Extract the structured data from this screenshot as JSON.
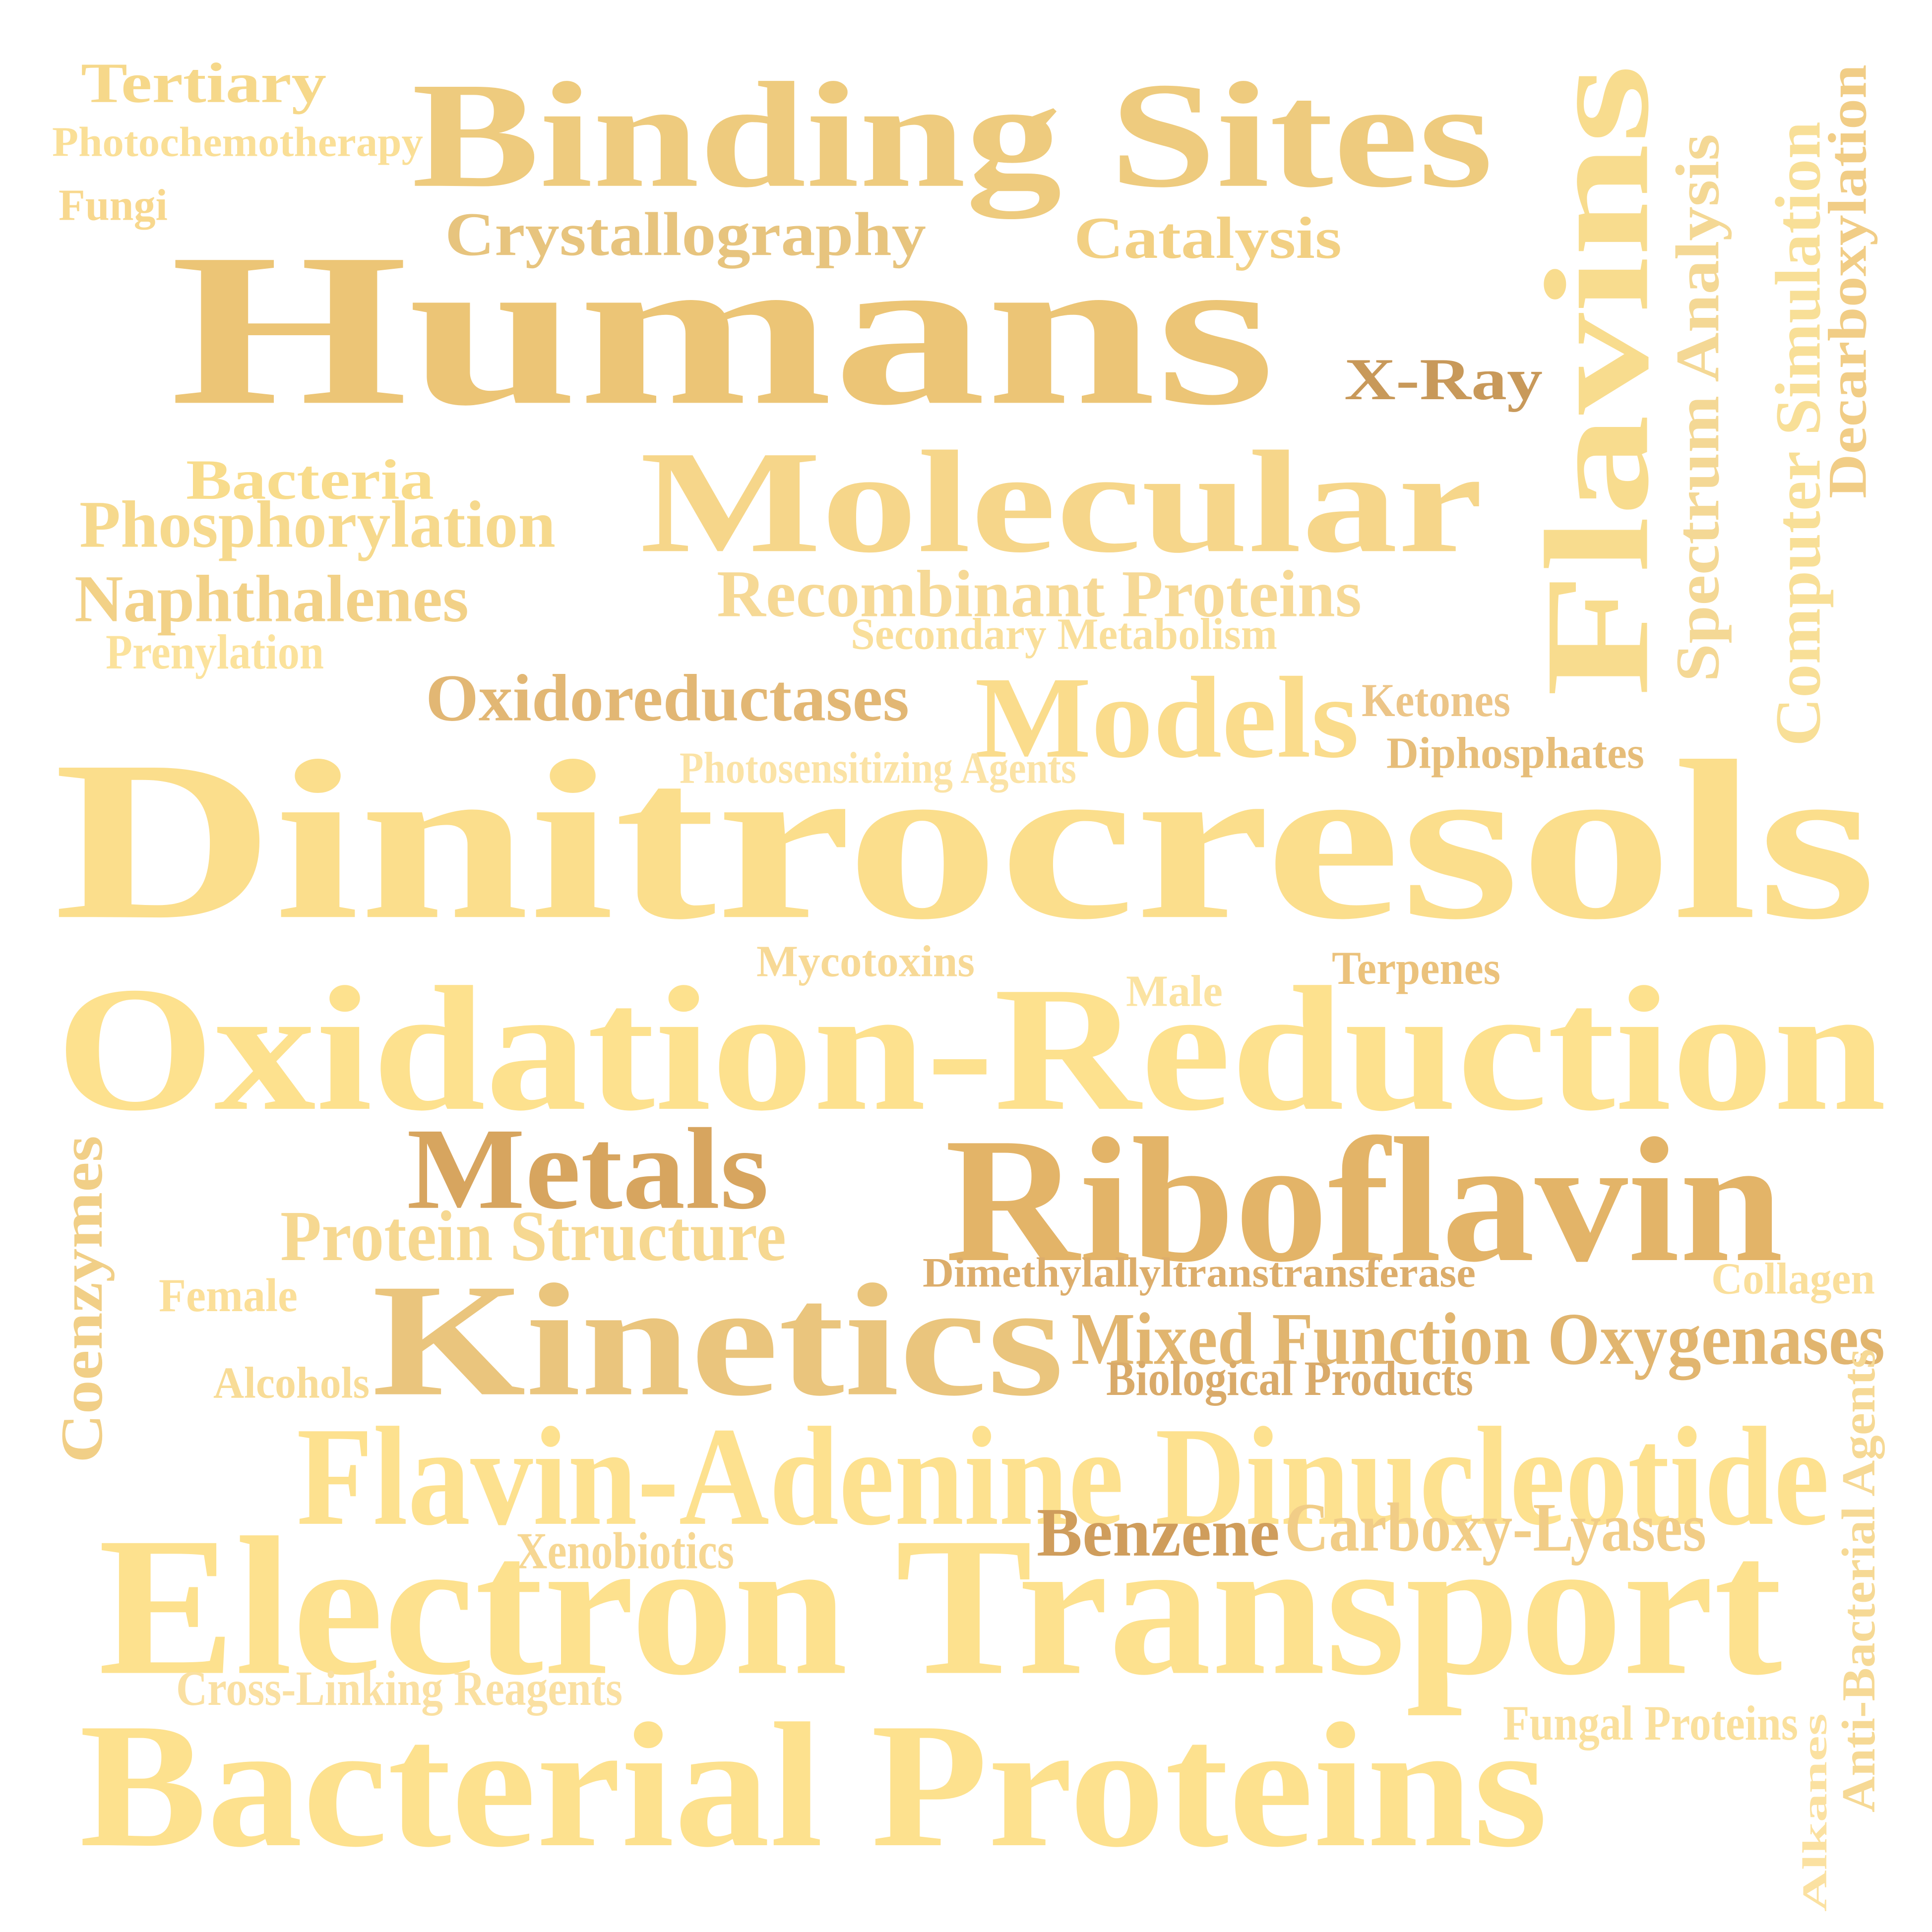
{
  "words": [
    {
      "text": "Tertiary",
      "color": "#f6d88a"
    },
    {
      "text": "Photochemotherapy",
      "color": "#fadf97"
    },
    {
      "text": "Fungi",
      "color": "#f8d88e"
    },
    {
      "text": "Binding Sites",
      "color": "#eecb7e"
    },
    {
      "text": "Crystallography",
      "color": "#e7c47e"
    },
    {
      "text": "Catalysis",
      "color": "#f2d083"
    },
    {
      "text": "Humans",
      "color": "#ecc576"
    },
    {
      "text": "Flavins",
      "color": "#f8dc8e"
    },
    {
      "text": "Spectrum Analysis",
      "color": "#f4d895"
    },
    {
      "text": "Computer Simulation",
      "color": "#f8df97"
    },
    {
      "text": "Decarboxylation",
      "color": "#f1cd86"
    },
    {
      "text": "X-Ray",
      "color": "#c8995a"
    },
    {
      "text": "Bacteria",
      "color": "#f8dc8c"
    },
    {
      "text": "Phosphorylation",
      "color": "#f6d98d"
    },
    {
      "text": "Molecular",
      "color": "#f6d68a"
    },
    {
      "text": "Naphthalenes",
      "color": "#f2d187"
    },
    {
      "text": "Recombinant Proteins",
      "color": "#f6d996"
    },
    {
      "text": "Prenylation",
      "color": "#fbe29c"
    },
    {
      "text": "Secondary Metabolism",
      "color": "#f9df9b"
    },
    {
      "text": "Oxidoreductases",
      "color": "#e2b774"
    },
    {
      "text": "Models",
      "color": "#fadc8c"
    },
    {
      "text": "Ketones",
      "color": "#ecc588"
    },
    {
      "text": "Diphosphates",
      "color": "#e6bd79"
    },
    {
      "text": "Photosensitizing Agents",
      "color": "#fbe3a6"
    },
    {
      "text": "Dinitrocresols",
      "color": "#fbde8c"
    },
    {
      "text": "Mycotoxins",
      "color": "#f7d996"
    },
    {
      "text": "Terpenes",
      "color": "#ebc27c"
    },
    {
      "text": "Male",
      "color": "#fbe3a2"
    },
    {
      "text": "Oxidation-Reduction",
      "color": "#fde18e"
    },
    {
      "text": "Coenzymes",
      "color": "#f1cf87"
    },
    {
      "text": "Metals",
      "color": "#d7a55f"
    },
    {
      "text": "Riboflavin",
      "color": "#e3b468"
    },
    {
      "text": "Protein Structure",
      "color": "#f6d891"
    },
    {
      "text": "Dimethylallyltranstransferase",
      "color": "#dcad6b"
    },
    {
      "text": "Collagen",
      "color": "#fadf9b"
    },
    {
      "text": "Female",
      "color": "#fbdf99"
    },
    {
      "text": "Kinetics",
      "color": "#eac57d"
    },
    {
      "text": "Mixed Function Oxygenases",
      "color": "#e1b56f"
    },
    {
      "text": "Alcohols",
      "color": "#f8dc97"
    },
    {
      "text": "Biological Products",
      "color": "#d9aa69"
    },
    {
      "text": "Anti-Bacterial Agents",
      "color": "#f6d995"
    },
    {
      "text": "Flavin-Adenine Dinucleotide",
      "color": "#fde18f"
    },
    {
      "text": "Benzene",
      "color": "#cf9d5c"
    },
    {
      "text": "Carboxy-Lyases",
      "color": "#f1cd87"
    },
    {
      "text": "Xenobiotics",
      "color": "#f6d793"
    },
    {
      "text": "Electron Transport",
      "color": "#fde18e"
    },
    {
      "text": "Cross-Linking Reagents",
      "color": "#fae0a2"
    },
    {
      "text": "Fungal Proteins",
      "color": "#fae09d"
    },
    {
      "text": "Alkanes",
      "color": "#fbe1a1"
    },
    {
      "text": "Bacterial Proteins",
      "color": "#fde18e"
    }
  ]
}
